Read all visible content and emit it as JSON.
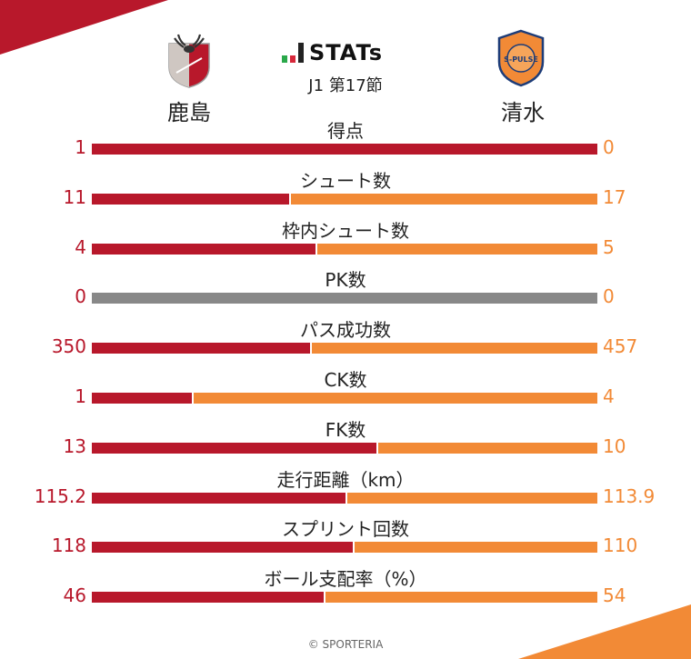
{
  "header": {
    "logo_text": "STATs",
    "round": "J1 第17節",
    "home_team": "鹿島",
    "away_team": "清水",
    "home_crest_icon": "kashima-antlers-crest-icon",
    "away_crest_icon": "shimizu-s-pulse-crest-icon",
    "away_crest_text": "S-PULSE"
  },
  "colors": {
    "home": "#b8182b",
    "away": "#f28a36",
    "neutral": "#888888",
    "logo_green": "#2aa84a",
    "logo_red": "#d7283a",
    "logo_dark": "#222222"
  },
  "chart_data": {
    "type": "bar",
    "orientation": "horizontal-split",
    "series": [
      {
        "name": "鹿島",
        "values": [
          "1",
          "11",
          "4",
          "0",
          "350",
          "1",
          "13",
          "115.2",
          "118",
          "46"
        ]
      },
      {
        "name": "清水",
        "values": [
          "0",
          "17",
          "5",
          "0",
          "457",
          "4",
          "10",
          "113.9",
          "110",
          "54"
        ]
      }
    ],
    "categories": [
      "得点",
      "シュート数",
      "枠内シュート数",
      "PK数",
      "パス成功数",
      "CK数",
      "FK数",
      "走行距離（km）",
      "スプリント回数",
      "ボール支配率（%）"
    ]
  },
  "footer": {
    "copyright": "© SPORTERIA"
  }
}
